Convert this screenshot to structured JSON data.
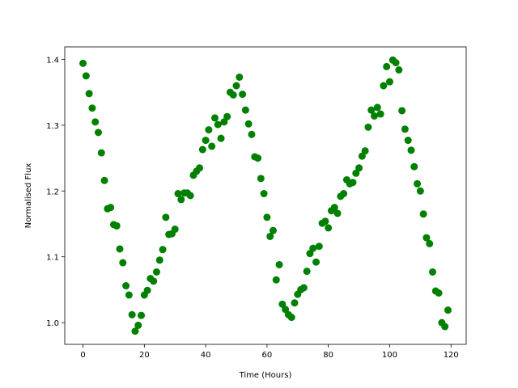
{
  "chart_data": {
    "type": "scatter",
    "x_label": "Time (Hours)",
    "y_label": "Normalised Flux",
    "color": "#008000",
    "x": [
      0,
      1,
      2,
      3,
      4,
      5,
      6,
      7,
      8,
      9,
      10,
      11,
      12,
      13,
      14,
      15,
      16,
      17,
      18,
      19,
      20,
      21,
      22,
      23,
      24,
      25,
      26,
      27,
      28,
      29,
      30,
      31,
      32,
      33,
      34,
      35,
      36,
      37,
      38,
      39,
      40,
      41,
      42,
      43,
      44,
      45,
      46,
      47,
      48,
      49,
      50,
      51,
      52,
      53,
      54,
      55,
      56,
      57,
      58,
      59,
      60,
      61,
      62,
      63,
      64,
      65,
      66,
      67,
      68,
      69,
      70,
      71,
      72,
      73,
      74,
      75,
      76,
      77,
      78,
      79,
      80,
      81,
      82,
      83,
      84,
      85,
      86,
      87,
      88,
      89,
      90,
      91,
      92,
      93,
      94,
      95,
      96,
      97,
      98,
      99,
      100,
      101,
      102,
      103,
      104,
      105,
      106,
      107,
      108,
      109,
      110,
      111,
      112,
      113,
      114,
      115,
      116,
      117,
      118,
      119
    ],
    "values": [
      1.394,
      1.375,
      1.348,
      1.326,
      1.305,
      1.289,
      1.258,
      1.216,
      1.173,
      1.175,
      1.149,
      1.147,
      1.112,
      1.091,
      1.056,
      1.042,
      1.012,
      0.987,
      0.996,
      1.011,
      1.042,
      1.049,
      1.067,
      1.063,
      1.077,
      1.095,
      1.111,
      1.16,
      1.134,
      1.135,
      1.142,
      1.196,
      1.187,
      1.197,
      1.197,
      1.193,
      1.224,
      1.23,
      1.235,
      1.263,
      1.277,
      1.293,
      1.268,
      1.311,
      1.301,
      1.28,
      1.305,
      1.313,
      1.35,
      1.346,
      1.36,
      1.373,
      1.347,
      1.323,
      1.302,
      1.286,
      1.252,
      1.25,
      1.219,
      1.196,
      1.16,
      1.131,
      1.14,
      1.065,
      1.088,
      1.028,
      1.02,
      1.012,
      1.008,
      1.03,
      1.043,
      1.05,
      1.053,
      1.078,
      1.105,
      1.113,
      1.092,
      1.116,
      1.151,
      1.154,
      1.144,
      1.17,
      1.175,
      1.166,
      1.192,
      1.196,
      1.217,
      1.211,
      1.213,
      1.227,
      1.235,
      1.253,
      1.261,
      1.297,
      1.323,
      1.314,
      1.327,
      1.317,
      1.36,
      1.389,
      1.366,
      1.399,
      1.395,
      1.384,
      1.322,
      1.294,
      1.277,
      1.262,
      1.237,
      1.211,
      1.2,
      1.165,
      1.129,
      1.12,
      1.077,
      1.048,
      1.045,
      1.0,
      0.994,
      1.019
    ],
    "xlim": [
      -5.95,
      124.95
    ],
    "ylim": [
      0.967,
      1.419
    ],
    "xticks": [
      0,
      20,
      40,
      60,
      80,
      100,
      120
    ],
    "yticks": [
      {
        "value": 1,
        "label": "1.0"
      },
      1.1,
      1.2,
      1.3,
      1.4
    ]
  }
}
